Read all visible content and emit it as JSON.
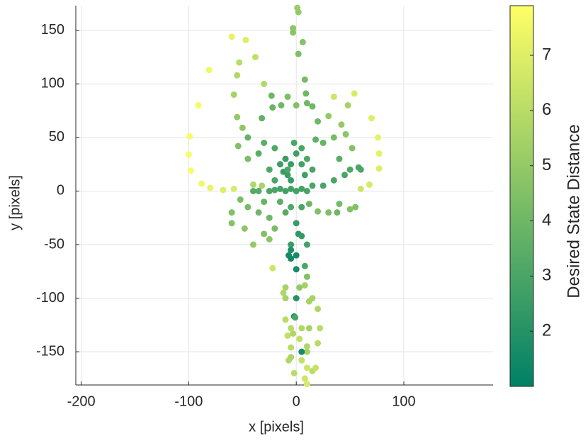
{
  "chart_data": {
    "type": "scatter",
    "xlabel": "x [pixels]",
    "ylabel": "y [pixels]",
    "xlim": [
      -205,
      183
    ],
    "ylim": [
      -181,
      173
    ],
    "xticks": [
      -200,
      -100,
      0,
      100
    ],
    "yticks": [
      -150,
      -100,
      -50,
      0,
      50,
      100,
      150
    ],
    "grid": true,
    "colormap": [
      "#008066",
      "#ffff66"
    ],
    "colorbar": {
      "label": "Desired State Distance",
      "clim": [
        1.0,
        7.9
      ],
      "ticks": [
        2,
        3,
        4,
        5,
        6,
        7
      ]
    },
    "x": [
      -60,
      -47,
      -81,
      -91,
      -99,
      -100,
      -98,
      -88,
      -80,
      -68,
      -58,
      -38,
      -53,
      -55,
      -58,
      -55,
      -50,
      -54,
      -45,
      -40,
      -32,
      1,
      2,
      -3,
      -3,
      6,
      2,
      8,
      9,
      -8,
      -23,
      -30,
      -22,
      -32,
      -14,
      0,
      10,
      15,
      35,
      54,
      70,
      76,
      77,
      77,
      68,
      60,
      48,
      42,
      46,
      52,
      30,
      20,
      35,
      40,
      50,
      58,
      60,
      45,
      35,
      25,
      55,
      50,
      40,
      30,
      20,
      12,
      38,
      0,
      -5,
      -10,
      -15,
      -20,
      -25,
      5,
      10,
      15,
      -8,
      -5,
      -10,
      -15,
      -12,
      -5,
      0,
      -2,
      5,
      10,
      15,
      8,
      5,
      -20,
      -30,
      -35,
      -25,
      -20,
      -30,
      -35,
      -45,
      -60,
      -48,
      -60,
      -25,
      -20,
      -30,
      -40,
      -25,
      -15,
      -10,
      -5,
      5,
      0,
      2,
      5,
      -5,
      10,
      -5,
      -7,
      -5,
      0,
      0,
      8,
      10,
      8,
      3,
      -10,
      -12,
      -10,
      0,
      -2,
      -5,
      -1,
      5,
      12,
      20,
      22,
      -3,
      -8,
      10,
      -5,
      10,
      5,
      20,
      -7,
      5,
      10,
      15,
      18,
      8,
      10,
      -2,
      -5,
      3,
      12,
      -22,
      -10,
      15,
      -8,
      18,
      25,
      -45,
      -40,
      -52,
      -35
    ],
    "y": [
      144,
      141,
      113,
      80,
      51,
      34,
      19,
      7,
      3,
      1,
      2,
      125,
      120,
      108,
      90,
      69,
      59,
      42,
      30,
      6,
      5,
      171,
      167,
      152,
      148,
      139,
      128,
      104,
      91,
      88,
      89,
      100,
      78,
      68,
      80,
      80,
      82,
      79,
      88,
      91,
      68,
      50,
      35,
      21,
      6,
      2,
      80,
      62,
      53,
      40,
      70,
      65,
      50,
      30,
      20,
      22,
      20,
      15,
      10,
      5,
      -15,
      -17,
      -12,
      -20,
      -19,
      -12,
      -20,
      0,
      2,
      0,
      2,
      1,
      0,
      2,
      0,
      5,
      15,
      25,
      30,
      25,
      18,
      10,
      35,
      45,
      40,
      30,
      20,
      15,
      25,
      40,
      45,
      35,
      20,
      10,
      -10,
      -20,
      -15,
      -20,
      -35,
      -30,
      -25,
      -35,
      -40,
      -50,
      -45,
      -10,
      -20,
      -15,
      -15,
      -30,
      -40,
      -42,
      -50,
      -50,
      -55,
      -60,
      -63,
      -60,
      -73,
      -70,
      -80,
      -88,
      -90,
      -90,
      -95,
      -120,
      -100,
      -117,
      -128,
      -118,
      -128,
      -128,
      -110,
      -128,
      -133,
      -135,
      -145,
      -146,
      -150,
      -150,
      -142,
      -158,
      -158,
      -165,
      -168,
      -165,
      -175,
      -180,
      -170,
      -155,
      -138,
      -103,
      -72,
      -100,
      -100,
      20,
      48,
      45,
      50,
      0,
      -8,
      0
    ],
    "c": [
      7.2,
      7.0,
      7.5,
      7.6,
      7.7,
      7.7,
      7.7,
      7.5,
      7.3,
      7.0,
      6.8,
      6.2,
      6.0,
      5.8,
      5.5,
      5.0,
      4.8,
      4.5,
      4.3,
      5.8,
      5.6,
      5.2,
      5.0,
      4.8,
      4.7,
      4.6,
      4.4,
      4.2,
      4.0,
      4.4,
      4.0,
      5.8,
      3.8,
      3.6,
      4.0,
      4.5,
      4.0,
      4.0,
      6.5,
      6.8,
      7.0,
      7.2,
      7.2,
      7.0,
      6.8,
      6.5,
      5.5,
      5.0,
      4.8,
      4.5,
      5.0,
      4.0,
      4.2,
      3.5,
      3.2,
      3.0,
      3.0,
      3.0,
      3.0,
      3.0,
      4.5,
      4.6,
      4.2,
      4.4,
      4.5,
      4.0,
      4.0,
      2.8,
      2.8,
      2.8,
      2.9,
      3.0,
      3.0,
      2.8,
      2.9,
      3.0,
      2.6,
      2.5,
      2.6,
      2.6,
      2.6,
      2.5,
      2.7,
      3.0,
      3.0,
      3.1,
      3.0,
      2.8,
      2.8,
      3.2,
      3.5,
      3.5,
      3.2,
      3.0,
      3.8,
      4.0,
      4.2,
      4.5,
      4.8,
      4.6,
      4.0,
      4.3,
      4.5,
      5.0,
      4.8,
      3.5,
      3.4,
      3.2,
      3.0,
      2.5,
      2.3,
      2.4,
      2.6,
      2.8,
      1.8,
      1.6,
      1.5,
      1.6,
      1.6,
      3.0,
      4.5,
      5.5,
      5.0,
      5.5,
      5.8,
      6.0,
      2.0,
      1.8,
      6.0,
      3.0,
      5.8,
      5.5,
      5.8,
      6.0,
      5.7,
      6.2,
      5.8,
      6.0,
      5.5,
      1.6,
      6.0,
      5.8,
      6.2,
      6.5,
      6.0,
      6.3,
      6.5,
      6.8,
      6.0,
      5.6,
      6.2,
      5.5,
      6.5,
      5.5,
      5.5,
      3.0,
      3.6,
      3.8,
      3.7,
      3.3,
      4.4,
      3.3
    ]
  }
}
